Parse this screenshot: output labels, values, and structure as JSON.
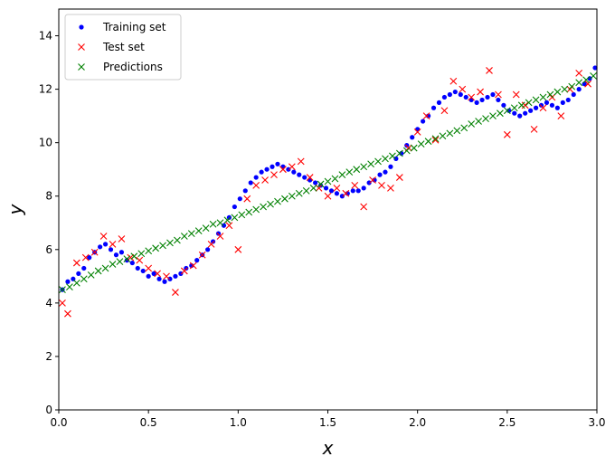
{
  "chart_data": {
    "type": "scatter",
    "title": "",
    "xlabel": "x",
    "ylabel": "y",
    "xlim": [
      0,
      3
    ],
    "ylim": [
      0,
      15
    ],
    "x_ticks": [
      0.0,
      0.5,
      1.0,
      1.5,
      2.0,
      2.5,
      3.0
    ],
    "x_tick_labels": [
      "0.0",
      "0.5",
      "1.0",
      "1.5",
      "2.0",
      "2.5",
      "3.0"
    ],
    "y_ticks": [
      0,
      2,
      4,
      6,
      8,
      10,
      12,
      14
    ],
    "y_tick_labels": [
      "0",
      "2",
      "4",
      "6",
      "8",
      "10",
      "12",
      "14"
    ],
    "grid": false,
    "legend_position": "top-left",
    "series": [
      {
        "name": "Training set",
        "marker": "dot",
        "color": "#0000ff",
        "x": [
          0.02,
          0.05,
          0.08,
          0.11,
          0.14,
          0.17,
          0.2,
          0.23,
          0.26,
          0.29,
          0.32,
          0.35,
          0.38,
          0.41,
          0.44,
          0.47,
          0.5,
          0.53,
          0.56,
          0.59,
          0.62,
          0.65,
          0.68,
          0.71,
          0.74,
          0.77,
          0.8,
          0.83,
          0.86,
          0.89,
          0.92,
          0.95,
          0.98,
          1.01,
          1.04,
          1.07,
          1.1,
          1.13,
          1.16,
          1.19,
          1.22,
          1.25,
          1.28,
          1.31,
          1.34,
          1.37,
          1.4,
          1.43,
          1.46,
          1.49,
          1.52,
          1.55,
          1.58,
          1.61,
          1.64,
          1.67,
          1.7,
          1.73,
          1.76,
          1.79,
          1.82,
          1.85,
          1.88,
          1.91,
          1.94,
          1.97,
          2.0,
          2.03,
          2.06,
          2.09,
          2.12,
          2.15,
          2.18,
          2.21,
          2.24,
          2.27,
          2.3,
          2.33,
          2.36,
          2.39,
          2.42,
          2.45,
          2.48,
          2.51,
          2.54,
          2.57,
          2.6,
          2.63,
          2.66,
          2.69,
          2.72,
          2.75,
          2.78,
          2.81,
          2.84,
          2.87,
          2.9,
          2.93,
          2.96,
          2.99
        ],
        "y": [
          4.5,
          4.8,
          4.9,
          5.1,
          5.3,
          5.7,
          5.9,
          6.1,
          6.2,
          6.0,
          5.8,
          5.9,
          5.6,
          5.5,
          5.3,
          5.2,
          5.0,
          5.1,
          4.9,
          4.8,
          4.9,
          5.0,
          5.1,
          5.3,
          5.4,
          5.6,
          5.8,
          6.0,
          6.3,
          6.6,
          6.9,
          7.2,
          7.6,
          7.9,
          8.2,
          8.5,
          8.7,
          8.9,
          9.0,
          9.1,
          9.2,
          9.1,
          9.0,
          8.9,
          8.8,
          8.7,
          8.6,
          8.5,
          8.4,
          8.3,
          8.2,
          8.1,
          8.0,
          8.1,
          8.2,
          8.2,
          8.3,
          8.5,
          8.6,
          8.8,
          8.9,
          9.1,
          9.4,
          9.6,
          9.9,
          10.2,
          10.5,
          10.8,
          11.0,
          11.3,
          11.5,
          11.7,
          11.8,
          11.9,
          11.8,
          11.7,
          11.6,
          11.5,
          11.6,
          11.7,
          11.8,
          11.6,
          11.4,
          11.2,
          11.1,
          11.0,
          11.1,
          11.2,
          11.3,
          11.4,
          11.5,
          11.4,
          11.3,
          11.5,
          11.6,
          11.8,
          12.0,
          12.2,
          12.4,
          12.8
        ]
      },
      {
        "name": "Test set",
        "marker": "x",
        "color": "#ff0000",
        "x": [
          0.02,
          0.05,
          0.1,
          0.15,
          0.2,
          0.25,
          0.3,
          0.35,
          0.4,
          0.45,
          0.5,
          0.55,
          0.6,
          0.65,
          0.7,
          0.75,
          0.8,
          0.85,
          0.9,
          0.95,
          1.0,
          1.05,
          1.1,
          1.15,
          1.2,
          1.25,
          1.3,
          1.35,
          1.4,
          1.45,
          1.5,
          1.55,
          1.6,
          1.65,
          1.7,
          1.75,
          1.8,
          1.85,
          1.9,
          1.95,
          2.0,
          2.05,
          2.1,
          2.15,
          2.2,
          2.25,
          2.3,
          2.35,
          2.4,
          2.45,
          2.5,
          2.55,
          2.6,
          2.65,
          2.7,
          2.75,
          2.8,
          2.85,
          2.9,
          2.95
        ],
        "y": [
          4.0,
          3.6,
          5.5,
          5.7,
          5.9,
          6.5,
          6.2,
          6.4,
          5.7,
          5.6,
          5.3,
          5.1,
          5.0,
          4.4,
          5.2,
          5.4,
          5.8,
          6.2,
          6.5,
          6.9,
          6.0,
          7.9,
          8.4,
          8.6,
          8.8,
          9.0,
          9.1,
          9.3,
          8.7,
          8.3,
          8.0,
          8.3,
          8.1,
          8.4,
          7.6,
          8.6,
          8.4,
          8.3,
          8.7,
          9.8,
          10.4,
          11.0,
          10.1,
          11.2,
          12.3,
          12.0,
          11.7,
          11.9,
          12.7,
          11.8,
          10.3,
          11.8,
          11.4,
          10.5,
          11.3,
          11.7,
          11.0,
          12.0,
          12.6,
          12.2
        ]
      },
      {
        "name": "Predictions",
        "marker": "x",
        "color": "#008000",
        "x": [
          0.02,
          0.06,
          0.1,
          0.14,
          0.18,
          0.22,
          0.26,
          0.3,
          0.34,
          0.38,
          0.42,
          0.46,
          0.5,
          0.54,
          0.58,
          0.62,
          0.66,
          0.7,
          0.74,
          0.78,
          0.82,
          0.86,
          0.9,
          0.94,
          0.98,
          1.02,
          1.06,
          1.1,
          1.14,
          1.18,
          1.22,
          1.26,
          1.3,
          1.34,
          1.38,
          1.42,
          1.46,
          1.5,
          1.54,
          1.58,
          1.62,
          1.66,
          1.7,
          1.74,
          1.78,
          1.82,
          1.86,
          1.9,
          1.94,
          1.98,
          2.02,
          2.06,
          2.1,
          2.14,
          2.18,
          2.22,
          2.26,
          2.3,
          2.34,
          2.38,
          2.42,
          2.46,
          2.5,
          2.54,
          2.58,
          2.62,
          2.66,
          2.7,
          2.74,
          2.78,
          2.82,
          2.86,
          2.9,
          2.94,
          2.98
        ],
        "y": [
          4.5,
          4.6,
          4.75,
          4.9,
          5.05,
          5.2,
          5.3,
          5.45,
          5.55,
          5.65,
          5.75,
          5.85,
          5.95,
          6.05,
          6.15,
          6.25,
          6.35,
          6.5,
          6.6,
          6.7,
          6.8,
          6.95,
          7.0,
          7.1,
          7.2,
          7.3,
          7.4,
          7.5,
          7.6,
          7.7,
          7.8,
          7.9,
          8.0,
          8.1,
          8.2,
          8.3,
          8.45,
          8.55,
          8.65,
          8.8,
          8.9,
          9.0,
          9.1,
          9.2,
          9.3,
          9.4,
          9.5,
          9.6,
          9.7,
          9.8,
          9.95,
          10.05,
          10.15,
          10.25,
          10.35,
          10.45,
          10.55,
          10.7,
          10.8,
          10.9,
          11.0,
          11.1,
          11.2,
          11.3,
          11.4,
          11.5,
          11.6,
          11.7,
          11.8,
          11.9,
          12.0,
          12.1,
          12.25,
          12.35,
          12.5
        ]
      }
    ]
  }
}
